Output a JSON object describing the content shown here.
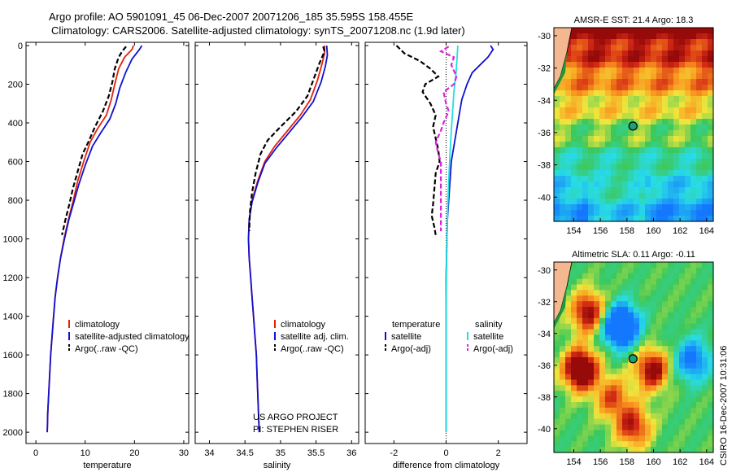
{
  "header": {
    "line1": "Argo profile: AO 5901091_45 06-Dec-2007 20071206_185 35.595S 158.455E",
    "line2": "Climatology: CARS2006. Satellite-adjusted climatology: synTS_20071208.nc (1.9d later)"
  },
  "footer_caption": "CSIRO 16-Dec-2007 10:31:06",
  "colors": {
    "climatology": "#e8200c",
    "satellite": "#1010d0",
    "argo": "#000000",
    "salinity_satellite": "#20e0e0",
    "salinity_argo": "#e020e0"
  },
  "chart_data": [
    {
      "type": "line",
      "xlabel": "temperature",
      "xlim": [
        -2,
        31
      ],
      "ylim": [
        0,
        2050
      ],
      "y_reversed": true,
      "xticks": [
        "0",
        "10",
        "20",
        "30"
      ],
      "yticks": [
        "0",
        "200",
        "400",
        "600",
        "800",
        "1000",
        "1200",
        "1400",
        "1600",
        "1800",
        "2000"
      ],
      "legend": [
        "climatology",
        "satellite-adjusted climatology",
        "Argo(..raw -QC)"
      ],
      "series": [
        {
          "name": "climatology",
          "color": "climatology",
          "dash": "solid",
          "points": [
            [
              19.8,
              0
            ],
            [
              19.5,
              20
            ],
            [
              18.0,
              60
            ],
            [
              16.8,
              120
            ],
            [
              16.0,
              200
            ],
            [
              15.3,
              280
            ],
            [
              14.3,
              360
            ],
            [
              12.5,
              430
            ],
            [
              11.0,
              500
            ],
            [
              9.7,
              600
            ],
            [
              8.5,
              700
            ],
            [
              7.6,
              800
            ],
            [
              6.6,
              900
            ],
            [
              5.7,
              1000
            ],
            [
              5.0,
              1100
            ],
            [
              4.4,
              1200
            ],
            [
              3.9,
              1300
            ],
            [
              3.6,
              1400
            ],
            [
              3.3,
              1500
            ],
            [
              3.0,
              1600
            ],
            [
              2.8,
              1700
            ],
            [
              2.6,
              1800
            ],
            [
              2.4,
              1900
            ],
            [
              2.3,
              2000
            ]
          ]
        },
        {
          "name": "satellite-adjusted climatology",
          "color": "satellite",
          "dash": "solid",
          "points": [
            [
              21.5,
              0
            ],
            [
              21.0,
              20
            ],
            [
              19.5,
              70
            ],
            [
              18.2,
              140
            ],
            [
              17.0,
              220
            ],
            [
              16.2,
              300
            ],
            [
              15.0,
              380
            ],
            [
              13.2,
              450
            ],
            [
              11.5,
              520
            ],
            [
              10.0,
              620
            ],
            [
              8.7,
              720
            ],
            [
              7.7,
              810
            ],
            [
              6.7,
              900
            ],
            [
              5.8,
              1000
            ],
            [
              5.0,
              1100
            ],
            [
              4.4,
              1200
            ],
            [
              3.9,
              1300
            ],
            [
              3.6,
              1400
            ],
            [
              3.3,
              1500
            ],
            [
              3.0,
              1600
            ],
            [
              2.8,
              1700
            ],
            [
              2.6,
              1800
            ],
            [
              2.4,
              1900
            ],
            [
              2.3,
              2000
            ]
          ]
        },
        {
          "name": "Argo(..raw -QC)",
          "color": "argo",
          "dash": "dashed",
          "points": [
            [
              18.3,
              5
            ],
            [
              17.5,
              30
            ],
            [
              16.8,
              60
            ],
            [
              16.0,
              120
            ],
            [
              15.5,
              190
            ],
            [
              14.8,
              260
            ],
            [
              13.6,
              340
            ],
            [
              12.0,
              420
            ],
            [
              10.8,
              490
            ],
            [
              9.5,
              560
            ],
            [
              8.5,
              650
            ],
            [
              7.5,
              740
            ],
            [
              6.8,
              820
            ],
            [
              6.0,
              900
            ],
            [
              5.3,
              980
            ]
          ]
        }
      ]
    },
    {
      "type": "line",
      "xlabel": "salinity",
      "xlim": [
        33.8,
        36.1
      ],
      "ylim": [
        0,
        2050
      ],
      "y_reversed": true,
      "xticks": [
        "34",
        "34.5",
        "35",
        "35.5",
        "36"
      ],
      "legend": [
        "climatology",
        "satellite adj. clim.",
        "Argo(..raw -QC)"
      ],
      "annotation": [
        "US ARGO PROJECT",
        "PI: STEPHEN RISER"
      ],
      "series": [
        {
          "name": "climatology",
          "color": "climatology",
          "dash": "solid",
          "points": [
            [
              35.62,
              0
            ],
            [
              35.62,
              40
            ],
            [
              35.58,
              100
            ],
            [
              35.52,
              180
            ],
            [
              35.42,
              280
            ],
            [
              35.28,
              360
            ],
            [
              35.1,
              440
            ],
            [
              34.92,
              520
            ],
            [
              34.78,
              600
            ],
            [
              34.68,
              700
            ],
            [
              34.6,
              800
            ],
            [
              34.56,
              900
            ],
            [
              34.55,
              1000
            ],
            [
              34.56,
              1100
            ],
            [
              34.58,
              1200
            ],
            [
              34.6,
              1300
            ],
            [
              34.62,
              1400
            ],
            [
              34.64,
              1500
            ],
            [
              34.66,
              1600
            ],
            [
              34.67,
              1700
            ],
            [
              34.68,
              1800
            ],
            [
              34.69,
              1900
            ],
            [
              34.7,
              2000
            ]
          ]
        },
        {
          "name": "satellite adj. clim.",
          "color": "satellite",
          "dash": "solid",
          "points": [
            [
              35.65,
              0
            ],
            [
              35.66,
              50
            ],
            [
              35.63,
              110
            ],
            [
              35.57,
              190
            ],
            [
              35.46,
              290
            ],
            [
              35.3,
              370
            ],
            [
              35.12,
              450
            ],
            [
              34.94,
              530
            ],
            [
              34.78,
              610
            ],
            [
              34.68,
              710
            ],
            [
              34.6,
              810
            ],
            [
              34.56,
              900
            ],
            [
              34.55,
              1000
            ],
            [
              34.56,
              1100
            ],
            [
              34.58,
              1200
            ],
            [
              34.6,
              1300
            ],
            [
              34.62,
              1400
            ],
            [
              34.64,
              1500
            ],
            [
              34.66,
              1600
            ],
            [
              34.67,
              1700
            ],
            [
              34.68,
              1800
            ],
            [
              34.69,
              1900
            ],
            [
              34.7,
              2000
            ]
          ]
        },
        {
          "name": "Argo(..raw -QC)",
          "color": "argo",
          "dash": "dashed",
          "points": [
            [
              35.6,
              5
            ],
            [
              35.62,
              30
            ],
            [
              35.55,
              90
            ],
            [
              35.48,
              160
            ],
            [
              35.38,
              260
            ],
            [
              35.22,
              340
            ],
            [
              35.0,
              420
            ],
            [
              34.82,
              490
            ],
            [
              34.72,
              560
            ],
            [
              34.65,
              660
            ],
            [
              34.6,
              760
            ],
            [
              34.57,
              860
            ],
            [
              34.56,
              960
            ]
          ]
        }
      ]
    },
    {
      "type": "line",
      "xlabel": "difference from climatology",
      "xlim": [
        -3.1,
        3.1
      ],
      "ylim": [
        0,
        2050
      ],
      "y_reversed": true,
      "xticks": [
        "-2",
        "0",
        "2"
      ],
      "legend_headers": [
        "temperature",
        "salinity"
      ],
      "legend": [
        "satellite",
        "Argo(-adj)",
        "satellite",
        "Argo(-adj)"
      ],
      "series": [
        {
          "name": "satellite",
          "group": "temperature",
          "color": "satellite",
          "dash": "solid",
          "points": [
            [
              1.7,
              0
            ],
            [
              1.8,
              20
            ],
            [
              1.6,
              60
            ],
            [
              1.3,
              100
            ],
            [
              1.0,
              140
            ],
            [
              0.8,
              200
            ],
            [
              0.6,
              280
            ],
            [
              0.5,
              360
            ],
            [
              0.4,
              440
            ],
            [
              0.3,
              520
            ],
            [
              0.2,
              600
            ],
            [
              0.15,
              700
            ],
            [
              0.1,
              800
            ],
            [
              0.05,
              900
            ],
            [
              0.03,
              1000
            ],
            [
              0.0,
              1200
            ],
            [
              0.0,
              1400
            ],
            [
              0.0,
              1600
            ],
            [
              0.0,
              1800
            ],
            [
              0.0,
              2000
            ]
          ]
        },
        {
          "name": "Argo(-adj)",
          "group": "temperature",
          "color": "argo",
          "dash": "dashed",
          "points": [
            [
              -1.9,
              0
            ],
            [
              -1.6,
              40
            ],
            [
              -1.0,
              80
            ],
            [
              -0.6,
              120
            ],
            [
              -0.3,
              160
            ],
            [
              -0.8,
              200
            ],
            [
              -0.9,
              240
            ],
            [
              -0.6,
              300
            ],
            [
              -0.4,
              360
            ],
            [
              -0.5,
              420
            ],
            [
              -0.4,
              480
            ],
            [
              -0.3,
              540
            ],
            [
              -0.25,
              600
            ],
            [
              -0.4,
              660
            ],
            [
              -0.45,
              740
            ],
            [
              -0.5,
              820
            ],
            [
              -0.55,
              880
            ],
            [
              -0.45,
              940
            ],
            [
              -0.4,
              980
            ]
          ]
        },
        {
          "name": "satellite",
          "group": "salinity",
          "color": "salinity_satellite",
          "dash": "solid",
          "points": [
            [
              0.45,
              0
            ],
            [
              0.42,
              60
            ],
            [
              0.38,
              140
            ],
            [
              0.3,
              240
            ],
            [
              0.25,
              340
            ],
            [
              0.2,
              440
            ],
            [
              0.15,
              560
            ],
            [
              0.1,
              700
            ],
            [
              0.06,
              850
            ],
            [
              0.03,
              1000
            ],
            [
              0.01,
              1200
            ],
            [
              0.0,
              1400
            ],
            [
              0.0,
              1600
            ],
            [
              0.0,
              1800
            ],
            [
              0.0,
              2000
            ]
          ]
        },
        {
          "name": "Argo(-adj)",
          "group": "salinity",
          "color": "salinity_argo",
          "dash": "dashed",
          "points": [
            [
              0.1,
              5
            ],
            [
              -0.2,
              30
            ],
            [
              0.3,
              60
            ],
            [
              0.2,
              100
            ],
            [
              0.4,
              160
            ],
            [
              0.3,
              200
            ],
            [
              -0.1,
              240
            ],
            [
              0.0,
              300
            ],
            [
              0.1,
              340
            ],
            [
              -0.1,
              400
            ],
            [
              -0.2,
              440
            ],
            [
              -0.4,
              500
            ],
            [
              -0.3,
              560
            ],
            [
              -0.2,
              600
            ],
            [
              -0.2,
              680
            ],
            [
              -0.2,
              760
            ],
            [
              -0.2,
              840
            ],
            [
              -0.2,
              920
            ],
            [
              -0.2,
              960
            ]
          ]
        }
      ]
    },
    {
      "type": "heatmap",
      "title": "AMSR-E SST: 21.4  Argo: 18.3",
      "xlim": [
        152.5,
        164.5
      ],
      "ylim": [
        -41.5,
        -29.5
      ],
      "xticks": [
        "154",
        "156",
        "158",
        "160",
        "162",
        "164"
      ],
      "yticks": [
        "-30",
        "-32",
        "-34",
        "-36",
        "-38",
        "-40"
      ],
      "marker": {
        "lon": 158.455,
        "lat": -35.595
      }
    },
    {
      "type": "heatmap",
      "title": "Altimetric SLA: 0.11  Argo: -0.11",
      "xlim": [
        152.5,
        164.5
      ],
      "ylim": [
        -41.5,
        -29.5
      ],
      "xticks": [
        "154",
        "156",
        "158",
        "160",
        "162",
        "164"
      ],
      "yticks": [
        "-30",
        "-32",
        "-34",
        "-36",
        "-38",
        "-40"
      ],
      "marker": {
        "lon": 158.455,
        "lat": -35.595
      }
    }
  ]
}
